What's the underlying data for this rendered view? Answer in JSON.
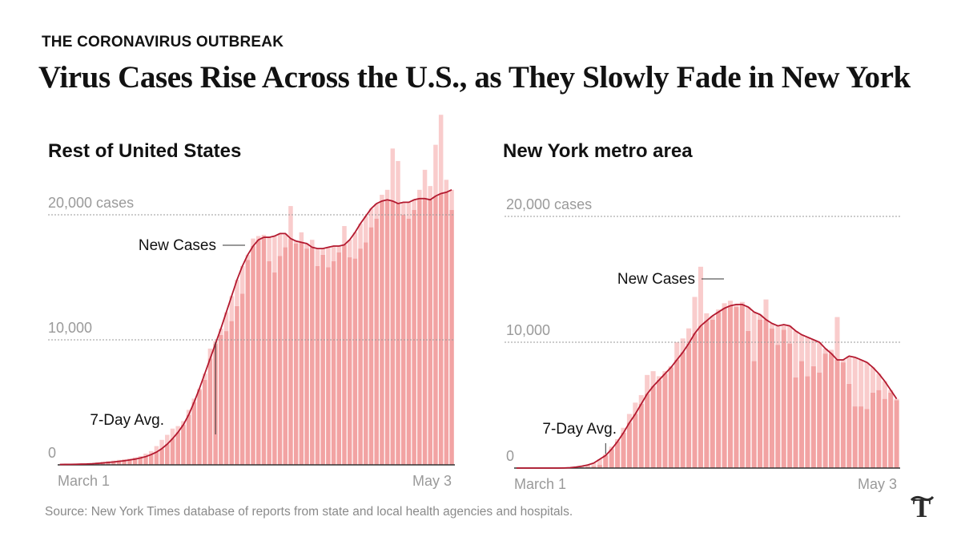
{
  "header": {
    "kicker": "THE CORONAVIRUS OUTBREAK",
    "headline": "Virus Cases Rise Across the U.S., as They Slowly Fade in New York"
  },
  "source": "Source: New York Times database of reports from state and local health agencies and hospitals.",
  "logo_icon": "nyt-t-logo-icon",
  "colors": {
    "bar": "#f2a3a3",
    "bar_light": "#f9cccc",
    "line": "#b3192f",
    "grid": "#9a9a9a",
    "tick_text": "#9a9a9a"
  },
  "chart_data": [
    {
      "type": "bar",
      "title": "Rest of United States",
      "x_start": "March 1",
      "x_labels": [
        "March 1",
        "May 3"
      ],
      "y_ticks": [
        "0",
        "10,000",
        "20,000 cases"
      ],
      "y_tick_values": [
        0,
        10000,
        20000
      ],
      "ylim": [
        0,
        28000
      ],
      "annotations": [
        "New Cases",
        "7-Day Avg."
      ],
      "series": [
        {
          "name": "New Cases",
          "values": [
            40,
            50,
            60,
            80,
            90,
            120,
            150,
            200,
            260,
            300,
            340,
            400,
            450,
            500,
            600,
            700,
            900,
            1100,
            1500,
            2000,
            2400,
            2900,
            3100,
            3500,
            4400,
            5300,
            6000,
            6800,
            9300,
            9900,
            10400,
            10700,
            11500,
            12700,
            13700,
            16400,
            18100,
            18300,
            18400,
            16300,
            15400,
            16700,
            17400,
            20700,
            17700,
            18600,
            17300,
            18000,
            15900,
            16800,
            15800,
            16300,
            17000,
            19100,
            16600,
            16500,
            17300,
            17800,
            19000,
            19700,
            21600,
            22000,
            25300,
            24300,
            20000,
            19700,
            20400,
            22000,
            23600,
            22300,
            25600,
            28000,
            22800,
            20400
          ]
        },
        {
          "name": "7-Day Avg.",
          "values": [
            30,
            35,
            40,
            50,
            60,
            70,
            90,
            120,
            150,
            190,
            230,
            280,
            330,
            390,
            460,
            550,
            660,
            820,
            1020,
            1300,
            1650,
            2100,
            2600,
            3200,
            4000,
            5000,
            6100,
            7300,
            8500,
            9700,
            10900,
            12200,
            13500,
            14800,
            15900,
            16800,
            17500,
            18000,
            18200,
            18200,
            18300,
            18500,
            18500,
            18100,
            17900,
            17800,
            17700,
            17400,
            17300,
            17300,
            17400,
            17500,
            17500,
            17600,
            18000,
            18600,
            19300,
            19900,
            20500,
            20900,
            21100,
            21200,
            21100,
            20900,
            21000,
            21000,
            21200,
            21300,
            21300,
            21200,
            21500,
            21700,
            21800,
            22000
          ]
        }
      ]
    },
    {
      "type": "bar",
      "title": "New York metro area",
      "x_start": "March 1",
      "x_labels": [
        "March 1",
        "May 3"
      ],
      "y_ticks": [
        "0",
        "10,000",
        "20,000 cases"
      ],
      "y_tick_values": [
        0,
        10000,
        20000
      ],
      "ylim": [
        0,
        28000
      ],
      "annotations": [
        "New Cases",
        "7-Day Avg."
      ],
      "series": [
        {
          "name": "New Cases",
          "values": [
            0,
            0,
            0,
            0,
            0,
            0,
            0,
            0,
            0,
            10,
            20,
            60,
            100,
            150,
            250,
            1100,
            1700,
            2300,
            3200,
            4300,
            5200,
            5800,
            7400,
            7700,
            7300,
            7700,
            8100,
            10000,
            10300,
            11100,
            13600,
            16000,
            12300,
            11800,
            12600,
            13100,
            13300,
            12800,
            13200,
            10900,
            8500,
            11800,
            13400,
            11100,
            9800,
            11000,
            9900,
            7200,
            8500,
            7300,
            8100,
            7600,
            9100,
            9400,
            12000,
            8400,
            6700,
            4900,
            4900,
            4700,
            6000,
            6200,
            5500,
            6000,
            5400
          ]
        },
        {
          "name": "7-Day Avg.",
          "values": [
            0,
            0,
            0,
            0,
            0,
            0,
            0,
            0,
            10,
            30,
            80,
            150,
            250,
            400,
            700,
            1000,
            1500,
            2100,
            2800,
            3600,
            4300,
            5100,
            5900,
            6500,
            7000,
            7500,
            8000,
            8600,
            9200,
            9900,
            10700,
            11300,
            11700,
            12100,
            12400,
            12700,
            12900,
            13000,
            13000,
            12800,
            12400,
            12200,
            11800,
            11500,
            11300,
            11400,
            11300,
            10900,
            10600,
            10400,
            10200,
            10000,
            9500,
            9100,
            8600,
            8600,
            8900,
            8800,
            8600,
            8400,
            8000,
            7500,
            6900,
            6200,
            5500
          ]
        }
      ]
    }
  ]
}
